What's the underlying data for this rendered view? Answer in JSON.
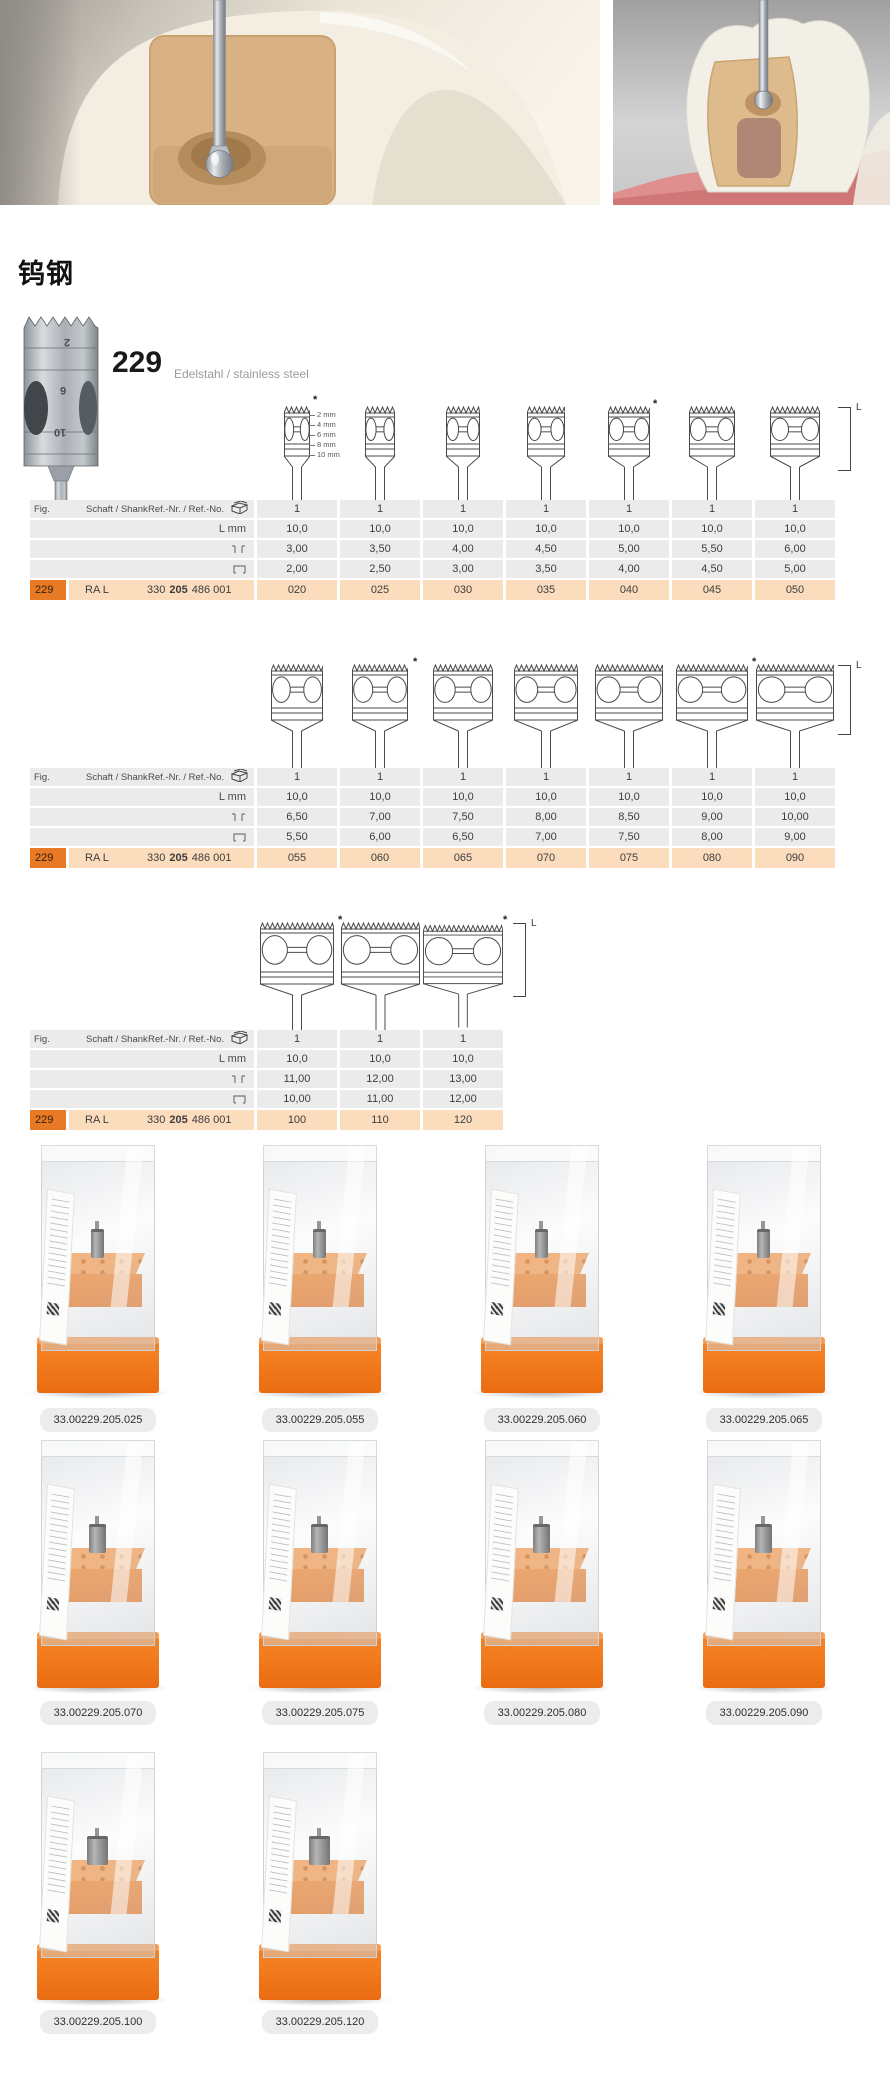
{
  "heading": "钨钢",
  "product": {
    "number": "229",
    "material": "Edelstahl / stainless steel"
  },
  "photo_markings": [
    "2",
    "6",
    "10"
  ],
  "table_header": {
    "fig": "Fig.",
    "shank": "Schaft / Shank",
    "ref": "Ref.-Nr. / Ref.-No."
  },
  "row_labels": {
    "l": "L mm"
  },
  "length_bracket_label": "L",
  "asterisk": "*",
  "depth_scale": [
    "2 mm",
    "4 mm",
    "6 mm",
    "8 mm",
    "10 mm"
  ],
  "fig_row": {
    "fig": "229",
    "shank": "RA L",
    "ref_part1": "330",
    "ref_bold": "205",
    "ref_part2": "486 001"
  },
  "tables": [
    {
      "pack": [
        "1",
        "1",
        "1",
        "1",
        "1",
        "1",
        "1"
      ],
      "l_mm": [
        "10,0",
        "10,0",
        "10,0",
        "10,0",
        "10,0",
        "10,0",
        "10,0"
      ],
      "head_diameter": [
        "3,00",
        "3,50",
        "4,00",
        "4,50",
        "5,00",
        "5,50",
        "6,00"
      ],
      "cut_width": [
        "2,00",
        "2,50",
        "3,00",
        "3,50",
        "4,00",
        "4,50",
        "5,00"
      ],
      "sizes": [
        "020",
        "025",
        "030",
        "035",
        "040",
        "045",
        "050"
      ],
      "starred_sizes": [
        "020",
        "040"
      ]
    },
    {
      "pack": [
        "1",
        "1",
        "1",
        "1",
        "1",
        "1",
        "1"
      ],
      "l_mm": [
        "10,0",
        "10,0",
        "10,0",
        "10,0",
        "10,0",
        "10,0",
        "10,0"
      ],
      "head_diameter": [
        "6,50",
        "7,00",
        "7,50",
        "8,00",
        "8,50",
        "9,00",
        "10,00"
      ],
      "cut_width": [
        "5,50",
        "6,00",
        "6,50",
        "7,00",
        "7,50",
        "8,00",
        "9,00"
      ],
      "sizes": [
        "055",
        "060",
        "065",
        "070",
        "075",
        "080",
        "090"
      ],
      "starred_sizes": [
        "060",
        "080"
      ]
    },
    {
      "pack": [
        "1",
        "1",
        "1"
      ],
      "l_mm": [
        "10,0",
        "10,0",
        "10,0"
      ],
      "head_diameter": [
        "11,00",
        "12,00",
        "13,00"
      ],
      "cut_width": [
        "10,00",
        "11,00",
        "12,00"
      ],
      "sizes": [
        "100",
        "110",
        "120"
      ],
      "starred_sizes": [
        "100",
        "120"
      ]
    }
  ],
  "box_labels": [
    [
      "33.00229.205.025",
      "33.00229.205.055",
      "33.00229.205.060",
      "33.00229.205.065"
    ],
    [
      "33.00229.205.070",
      "33.00229.205.075",
      "33.00229.205.080",
      "33.00229.205.090"
    ],
    [
      "33.00229.205.100",
      "33.00229.205.120"
    ]
  ],
  "colors": {
    "accent_orange": "#E87A25",
    "fig_row_peach": "#FBDDBE",
    "table_row_gray": "#EBEBEB",
    "badge_gray": "#ECECEC",
    "box_orange": "#F1761D"
  }
}
